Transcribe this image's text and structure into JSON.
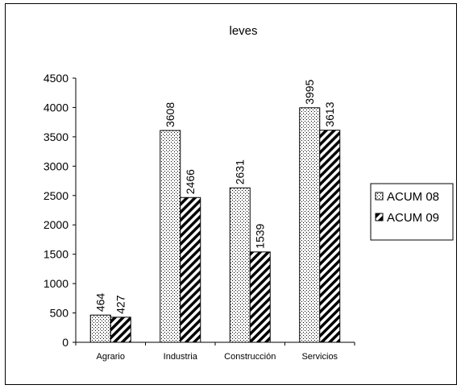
{
  "chart_data": {
    "type": "bar",
    "title": "leves",
    "categories": [
      "Agrario",
      "Industria",
      "Construcción",
      "Servicios"
    ],
    "series": [
      {
        "name": "ACUM 08",
        "values": [
          464,
          3608,
          2631,
          3995
        ],
        "pattern": "dots"
      },
      {
        "name": "ACUM 09",
        "values": [
          427,
          2466,
          1539,
          3613
        ],
        "pattern": "diagonal-hatch"
      }
    ],
    "ylim": [
      0,
      4500
    ],
    "yticks": [
      0,
      500,
      1000,
      1500,
      2000,
      2500,
      3000,
      3500,
      4000,
      4500
    ],
    "xlabel": "",
    "ylabel": "",
    "grid": false,
    "legend_position": "right",
    "colors": {
      "bar_fill": "#ffffff",
      "bar_stroke": "#000000",
      "pattern_ink": "#000000"
    }
  }
}
